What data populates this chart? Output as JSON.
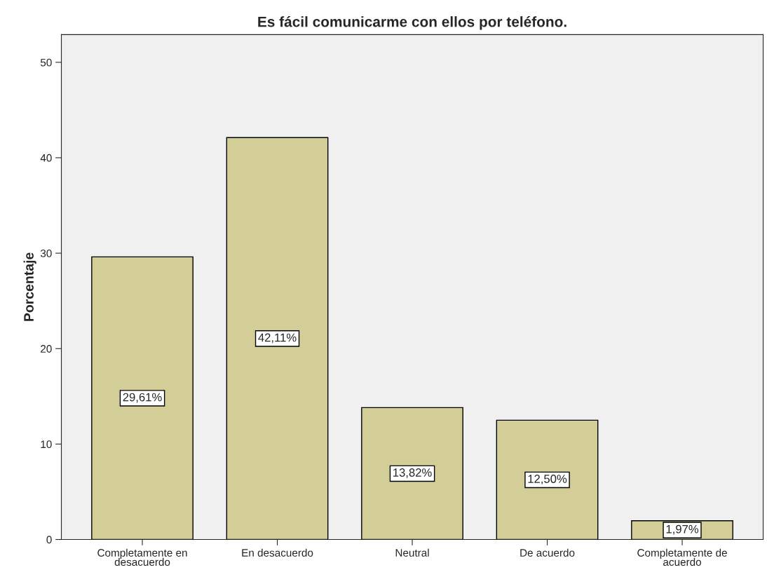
{
  "chart_data": {
    "type": "bar",
    "title": "Es fácil comunicarme con ellos por teléfono.",
    "ylabel": "Porcentaje",
    "categories": [
      "Completamente en\ndesacuerdo",
      "En desacuerdo",
      "Neutral",
      "De acuerdo",
      "Completamente de\nacuerdo"
    ],
    "values": [
      29.61,
      42.11,
      13.82,
      12.5,
      1.97
    ],
    "value_labels": [
      "29,61%",
      "42,11%",
      "13,82%",
      "12,50%",
      "1,97%"
    ],
    "color": "#d3ce97",
    "ylim": [
      0,
      52.9
    ],
    "yticks": [
      0,
      10,
      20,
      30,
      40,
      50
    ],
    "grid": false,
    "legend": false
  }
}
